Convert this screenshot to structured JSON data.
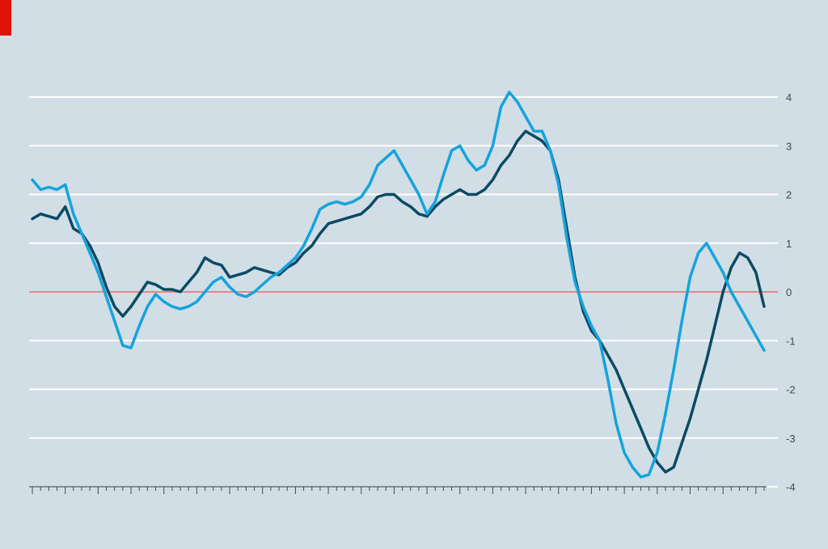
{
  "header": {
    "title": "",
    "subtitle": ""
  },
  "footer": {
    "source": ""
  },
  "colors": {
    "accent": "#e3120b",
    "background": "#d1dee6",
    "grid": "#ffffff",
    "zero_line": "#e0888a",
    "series_dark": "#0b4a63",
    "series_light": "#14a3dc"
  },
  "chart_data": {
    "type": "line",
    "title": "",
    "xlabel": "",
    "ylabel": "",
    "x": [
      0,
      1,
      2,
      3,
      4,
      5,
      6,
      7,
      8,
      9,
      10,
      11,
      12,
      13,
      14,
      15,
      16,
      17,
      18,
      19,
      20,
      21,
      22,
      23,
      24,
      25,
      26,
      27,
      28,
      29,
      30,
      31,
      32,
      33,
      34,
      35,
      36,
      37,
      38,
      39,
      40,
      41,
      42,
      43,
      44,
      45,
      46,
      47,
      48,
      49,
      50,
      51,
      52,
      53,
      54,
      55,
      56,
      57,
      58,
      59,
      60,
      61,
      62,
      63,
      64,
      65,
      66,
      67,
      68,
      69,
      70,
      71,
      72,
      73,
      74,
      75,
      76,
      77,
      78,
      79,
      80,
      81,
      82,
      83,
      84,
      85,
      86,
      87,
      88,
      89
    ],
    "ylim": [
      -4,
      4
    ],
    "yticks": [
      -4,
      -3,
      -2,
      -1,
      0,
      1,
      2,
      3,
      4
    ],
    "grid": true,
    "series": [
      {
        "name": "",
        "color": "#0b4a63",
        "values": [
          1.5,
          1.6,
          1.55,
          1.5,
          1.75,
          1.3,
          1.2,
          0.95,
          0.6,
          0.1,
          -0.3,
          -0.5,
          -0.3,
          -0.05,
          0.2,
          0.15,
          0.05,
          0.05,
          0.0,
          0.2,
          0.4,
          0.7,
          0.6,
          0.55,
          0.3,
          0.35,
          0.4,
          0.5,
          0.45,
          0.4,
          0.35,
          0.5,
          0.6,
          0.8,
          0.95,
          1.2,
          1.4,
          1.45,
          1.5,
          1.55,
          1.6,
          1.75,
          1.95,
          2.0,
          2.0,
          1.85,
          1.75,
          1.6,
          1.55,
          1.75,
          1.9,
          2.0,
          2.1,
          2.0,
          2.0,
          2.1,
          2.3,
          2.6,
          2.8,
          3.1,
          3.3,
          3.2,
          3.1,
          2.9,
          2.3,
          1.3,
          0.3,
          -0.4,
          -0.8,
          -1.0,
          -1.3,
          -1.6,
          -2.0,
          -2.4,
          -2.8,
          -3.2,
          -3.5,
          -3.7,
          -3.6,
          -3.1,
          -2.6,
          -2.0,
          -1.4,
          -0.7,
          0.0,
          0.5,
          0.8,
          0.7,
          0.4,
          -0.3
        ]
      },
      {
        "name": "",
        "color": "#14a3dc",
        "values": [
          2.3,
          2.1,
          2.15,
          2.1,
          2.2,
          1.6,
          1.2,
          0.8,
          0.4,
          -0.1,
          -0.6,
          -1.1,
          -1.15,
          -0.7,
          -0.3,
          -0.05,
          -0.2,
          -0.3,
          -0.35,
          -0.3,
          -0.2,
          0.0,
          0.2,
          0.3,
          0.1,
          -0.05,
          -0.1,
          0.0,
          0.15,
          0.3,
          0.4,
          0.55,
          0.7,
          0.95,
          1.3,
          1.7,
          1.8,
          1.85,
          1.8,
          1.85,
          1.95,
          2.2,
          2.6,
          2.75,
          2.9,
          2.6,
          2.3,
          2.0,
          1.6,
          1.85,
          2.4,
          2.9,
          3.0,
          2.7,
          2.5,
          2.6,
          3.0,
          3.8,
          4.1,
          3.9,
          3.6,
          3.3,
          3.3,
          2.9,
          2.2,
          1.1,
          0.2,
          -0.3,
          -0.7,
          -1.0,
          -1.8,
          -2.7,
          -3.3,
          -3.6,
          -3.8,
          -3.75,
          -3.3,
          -2.5,
          -1.6,
          -0.6,
          0.3,
          0.8,
          1.0,
          0.7,
          0.4,
          0.0,
          -0.3,
          -0.6,
          -0.9,
          -1.2
        ]
      }
    ]
  }
}
